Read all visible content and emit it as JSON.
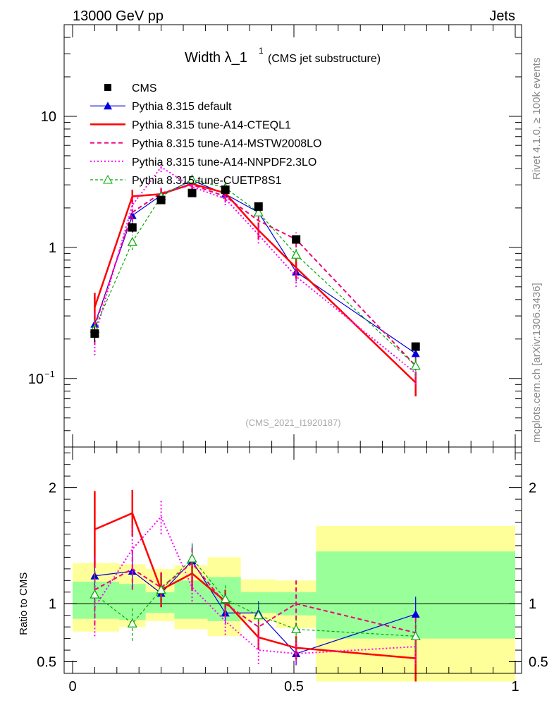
{
  "header": {
    "left": "13000 GeV pp",
    "right": "Jets"
  },
  "side_labels": {
    "top": "Rivet 4.1.0, ≥ 100k events",
    "bottom": "mcplots.cern.ch [arXiv:1306.3436]"
  },
  "chart_data": [
    {
      "type": "line",
      "title": "Width λ_1",
      "title_sup": "1",
      "subtitle": "(CMS jet substructure)",
      "watermark": "(CMS_2021_I1920187)",
      "yscale": "log",
      "ylim": [
        0.03,
        50
      ],
      "xlim": [
        -0.02,
        1.0
      ],
      "yticks": [
        {
          "v": 0.1,
          "label": "10",
          "sup": "−1"
        },
        {
          "v": 1,
          "label": "1"
        },
        {
          "v": 10,
          "label": "10"
        }
      ],
      "legend_position": "top-left",
      "x": [
        0.05,
        0.135,
        0.2,
        0.27,
        0.345,
        0.42,
        0.505,
        0.775
      ],
      "series": [
        {
          "name": "CMS",
          "color": "#000000",
          "style": "data",
          "marker": "square",
          "values": [
            0.22,
            1.42,
            2.3,
            2.6,
            2.75,
            2.05,
            1.15,
            0.175
          ],
          "err": [
            0.03,
            0.12,
            0.15,
            0.15,
            0.15,
            0.12,
            0.08,
            0.012
          ]
        },
        {
          "name": "Pythia 8.315 default",
          "color": "#0000dd",
          "style": "solid-thin",
          "marker": "triangle-filled",
          "values": [
            0.26,
            1.75,
            2.5,
            3.25,
            2.55,
            1.85,
            0.65,
            0.155
          ],
          "err": [
            0.05,
            0.2,
            0.2,
            0.25,
            0.2,
            0.15,
            0.1,
            0.02
          ]
        },
        {
          "name": "Pythia 8.315 tune-A14-CTEQL1",
          "color": "#ff0000",
          "style": "solid-thick",
          "marker": "none",
          "values": [
            0.35,
            2.45,
            2.55,
            3.05,
            2.6,
            1.35,
            0.7,
            0.093
          ],
          "err": [
            0.1,
            0.3,
            0.25,
            0.3,
            0.25,
            0.2,
            0.12,
            0.02
          ]
        },
        {
          "name": "Pythia 8.315 tune-A14-MSTW2008LO",
          "color": "#ee0077",
          "style": "dashed",
          "marker": "none",
          "values": [
            0.25,
            1.85,
            2.6,
            3.0,
            2.45,
            1.6,
            1.15,
            0.125
          ],
          "err": [
            0.07,
            0.25,
            0.25,
            0.3,
            0.25,
            0.2,
            0.15,
            0.02
          ]
        },
        {
          "name": "Pythia 8.315 tune-A14-NNPDF2.3LO",
          "color": "#ff00ff",
          "style": "dotted",
          "marker": "none",
          "values": [
            0.21,
            2.1,
            4.1,
            2.9,
            2.35,
            1.25,
            0.6,
            0.11
          ],
          "err": [
            0.06,
            0.3,
            0.35,
            0.3,
            0.25,
            0.18,
            0.1,
            0.02
          ]
        },
        {
          "name": "Pythia 8.315 tune-CUETP8S1",
          "color": "#00aa00",
          "style": "dashed-thin",
          "marker": "triangle-open",
          "values": [
            0.24,
            1.1,
            2.45,
            3.3,
            2.85,
            1.85,
            0.88,
            0.125
          ],
          "err": [
            0.05,
            0.15,
            0.2,
            0.25,
            0.2,
            0.15,
            0.1,
            0.02
          ]
        }
      ]
    },
    {
      "type": "line",
      "ylabel": "Ratio to CMS",
      "ylim": [
        0.4,
        2.35
      ],
      "xlim": [
        -0.02,
        1.0
      ],
      "xticks": [
        {
          "v": 0,
          "label": "0"
        },
        {
          "v": 0.5,
          "label": "0.5"
        },
        {
          "v": 1,
          "label": "1"
        }
      ],
      "yticks": [
        {
          "v": 0.5,
          "label": "0.5"
        },
        {
          "v": 1,
          "label": "1"
        },
        {
          "v": 2,
          "label": "2"
        }
      ],
      "bands": {
        "edges": [
          0.0,
          0.105,
          0.165,
          0.23,
          0.305,
          0.38,
          0.46,
          0.55,
          1.0
        ],
        "yellow": [
          [
            0.76,
            1.35
          ],
          [
            0.8,
            1.34
          ],
          [
            0.85,
            1.3
          ],
          [
            0.78,
            1.33
          ],
          [
            0.72,
            1.4
          ],
          [
            0.85,
            1.21
          ],
          [
            0.79,
            1.2
          ],
          [
            0.33,
            1.67
          ],
          [
            0.33,
            1.73
          ]
        ],
        "green": [
          [
            0.87,
            1.19
          ],
          [
            0.86,
            1.17
          ],
          [
            0.92,
            1.1
          ],
          [
            0.87,
            1.2
          ],
          [
            0.85,
            1.23
          ],
          [
            0.92,
            1.1
          ],
          [
            0.9,
            1.1
          ],
          [
            0.7,
            1.45
          ],
          [
            0.68,
            1.45
          ]
        ]
      },
      "x": [
        0.05,
        0.135,
        0.2,
        0.27,
        0.345,
        0.42,
        0.505,
        0.775
      ],
      "series": [
        {
          "name": "Pythia 8.315 default",
          "color": "#0000dd",
          "style": "solid-thin",
          "marker": "triangle-filled",
          "values": [
            1.24,
            1.28,
            1.09,
            1.37,
            0.92,
            0.92,
            0.57,
            0.91
          ],
          "err": [
            0.25,
            0.15,
            0.12,
            0.15,
            0.1,
            0.1,
            0.1,
            0.15
          ]
        },
        {
          "name": "Pythia 8.315 tune-A14-CTEQL1",
          "color": "#ff0000",
          "style": "solid-thick",
          "marker": "none",
          "values": [
            1.64,
            1.78,
            1.12,
            1.26,
            1.02,
            0.71,
            0.62,
            0.53
          ],
          "err": [
            0.33,
            0.2,
            0.15,
            0.15,
            0.1,
            0.1,
            0.1,
            0.2
          ]
        },
        {
          "name": "Pythia 8.315 tune-A14-MSTW2008LO",
          "color": "#ee0077",
          "style": "dashed",
          "marker": "none",
          "values": [
            1.12,
            1.3,
            1.14,
            1.35,
            1.0,
            0.8,
            1.0,
            0.75
          ],
          "err": [
            0.3,
            0.18,
            0.15,
            0.15,
            0.12,
            0.1,
            0.2,
            0.15
          ]
        },
        {
          "name": "Pythia 8.315 tune-A14-NNPDF2.3LO",
          "color": "#ff00ff",
          "style": "dotted",
          "marker": "none",
          "values": [
            0.97,
            1.47,
            1.75,
            1.14,
            0.85,
            0.6,
            0.57,
            0.63
          ],
          "err": [
            0.25,
            0.2,
            0.15,
            0.12,
            0.12,
            0.12,
            0.1,
            0.15
          ]
        },
        {
          "name": "Pythia 8.315 tune-CUETP8S1",
          "color": "#00aa00",
          "style": "dashed-thin",
          "marker": "triangle-open",
          "values": [
            1.08,
            0.83,
            1.12,
            1.39,
            1.04,
            0.9,
            0.78,
            0.72
          ],
          "err": [
            0.2,
            0.15,
            0.12,
            0.15,
            0.12,
            0.1,
            0.1,
            0.12
          ]
        }
      ]
    }
  ]
}
